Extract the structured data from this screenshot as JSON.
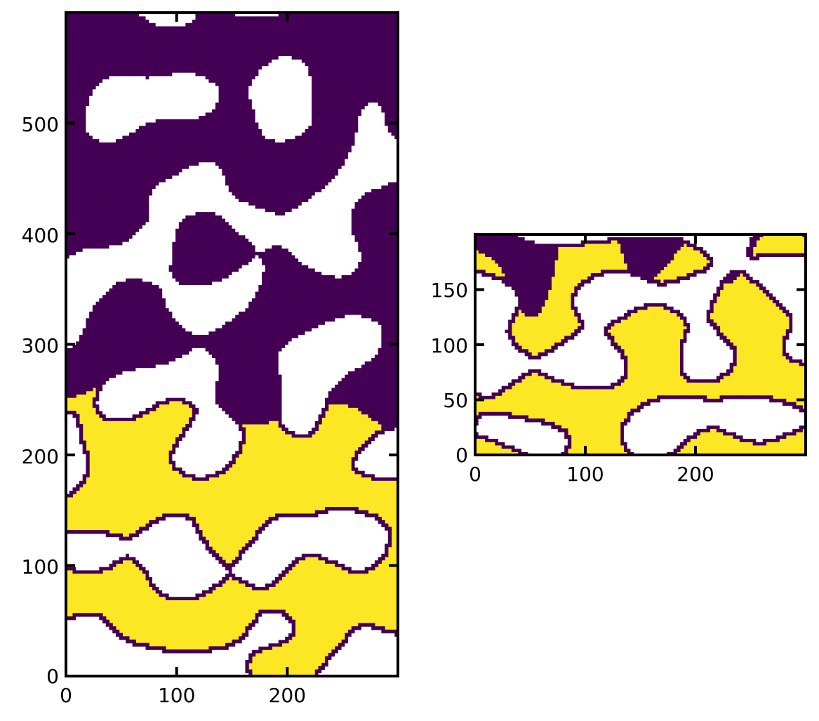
{
  "colors": {
    "low": "#440154",
    "high": "#fde725",
    "hole": "#ffffff",
    "axes": "#000000"
  },
  "chart_data": [
    {
      "type": "heatmap",
      "panel": "left",
      "title": "",
      "xlabel": "",
      "ylabel": "",
      "xlim": [
        0,
        300
      ],
      "ylim": [
        0,
        600
      ],
      "x_ticks": [
        0,
        100,
        200
      ],
      "y_ticks": [
        0,
        100,
        200,
        300,
        400,
        500
      ],
      "x_tick_labels": [
        "0",
        "100",
        "200"
      ],
      "y_tick_labels": [
        "0",
        "100",
        "200",
        "300",
        "400",
        "500"
      ],
      "grid": false,
      "legend": "none",
      "field": "two-phase binary field: purple phase above ~y=250, yellow phase below, white regions are holes; purple outlines around holes in the yellow phase",
      "interface_y_approx": 250,
      "seed": 7
    },
    {
      "type": "heatmap",
      "panel": "right",
      "title": "",
      "xlabel": "",
      "ylabel": "",
      "xlim": [
        0,
        300
      ],
      "ylim": [
        0,
        200
      ],
      "x_ticks": [
        0,
        100,
        200
      ],
      "y_ticks": [
        0,
        50,
        100,
        150
      ],
      "x_tick_labels": [
        "0",
        "100",
        "200"
      ],
      "y_tick_labels": [
        "0",
        "50",
        "100",
        "150"
      ],
      "grid": false,
      "legend": "none",
      "field": "two-phase binary field: thin purple band at top, yellow phase below, white holes outlined in purple",
      "interface_y_approx": 185,
      "seed": 19
    }
  ]
}
